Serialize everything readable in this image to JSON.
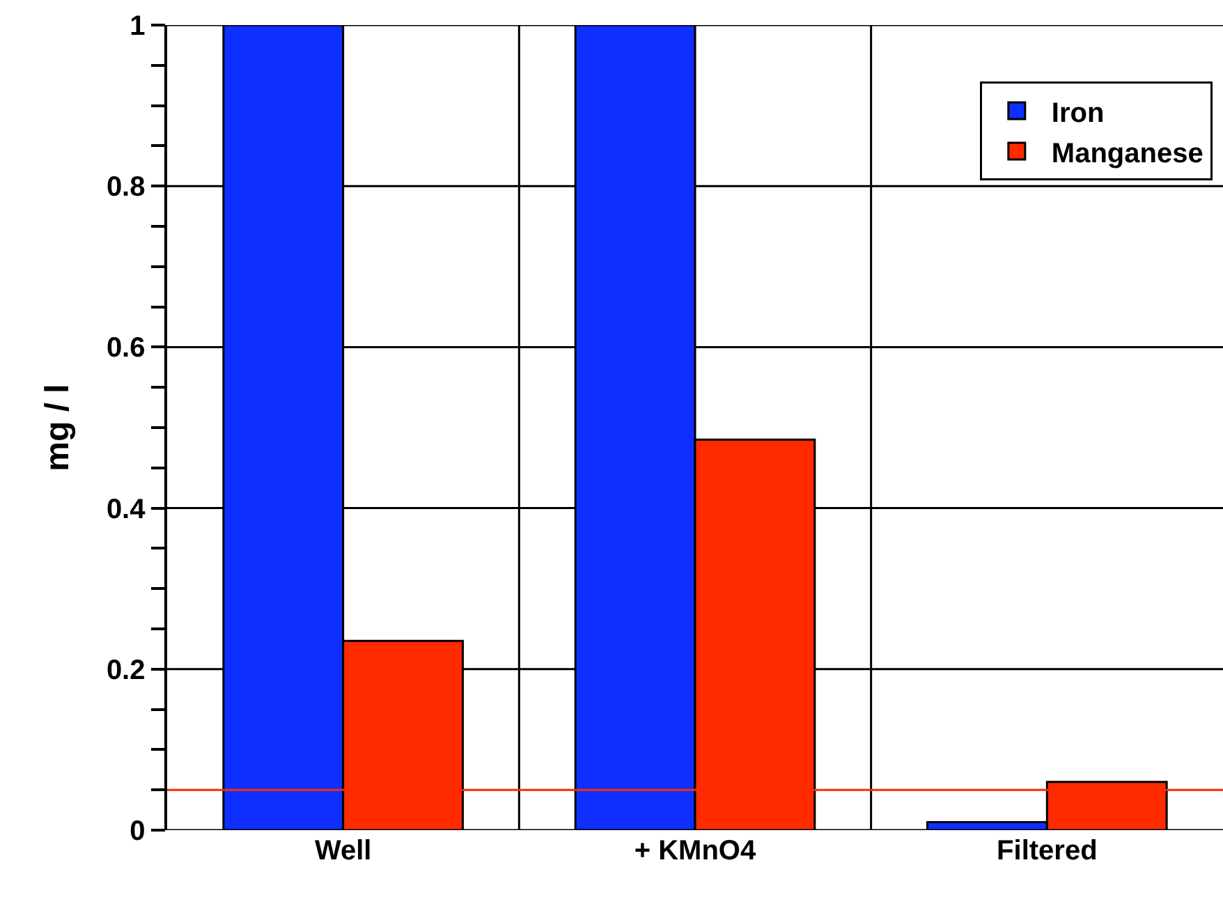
{
  "chart_data": {
    "type": "bar",
    "ylabel": "mg / l",
    "categories": [
      "Well",
      "+ KMnO4",
      "Filtered"
    ],
    "series": [
      {
        "name": "Iron",
        "color": "#0f2fff",
        "values": [
          1,
          1,
          0.01
        ]
      },
      {
        "name": "Manganese",
        "color": "#ff2a00",
        "values": [
          0.235,
          0.485,
          0.06
        ]
      }
    ],
    "ylim": [
      0,
      1
    ],
    "yticks": [
      0,
      {
        "value": 0.05,
        "label": null
      },
      {
        "value": 0.1,
        "label": null
      },
      {
        "value": 0.15,
        "label": null
      },
      0.2,
      {
        "value": 0.25,
        "label": null
      },
      {
        "value": 0.3,
        "label": null
      },
      {
        "value": 0.35,
        "label": null
      },
      0.4,
      {
        "value": 0.45,
        "label": null
      },
      {
        "value": 0.5,
        "label": null
      },
      {
        "value": 0.55,
        "label": null
      },
      0.6,
      {
        "value": 0.65,
        "label": null
      },
      {
        "value": 0.7,
        "label": null
      },
      {
        "value": 0.75,
        "label": null
      },
      0.8,
      {
        "value": 0.85,
        "label": null
      },
      {
        "value": 0.9,
        "label": null
      },
      {
        "value": 0.95,
        "label": null
      },
      1
    ],
    "ref_lines": [
      {
        "axis": "y",
        "value": 0.05,
        "color": "#ff2a00"
      }
    ],
    "grid": true,
    "legend": "top right"
  }
}
